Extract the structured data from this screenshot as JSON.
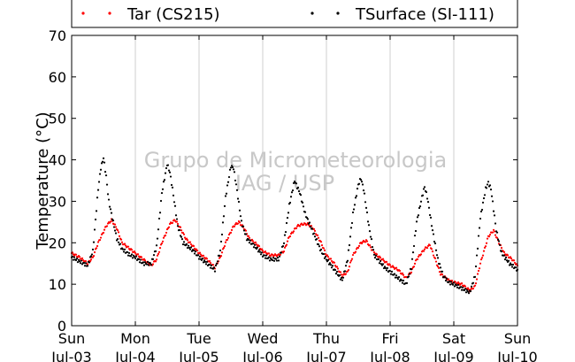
{
  "chart_data": {
    "type": "scatter",
    "title": "",
    "xlabel": "",
    "ylabel": "Temperature (°C)",
    "ylim": [
      0,
      70
    ],
    "yticks": [
      "0",
      "10",
      "20",
      "30",
      "40",
      "50",
      "60",
      "70"
    ],
    "xlim": [
      "2016-07-03 00:00",
      "2016-07-10 00:00"
    ],
    "xticks": [
      {
        "day": "Sun",
        "date": "Jul-03"
      },
      {
        "day": "Mon",
        "date": "Jul-04"
      },
      {
        "day": "Tue",
        "date": "Jul-05"
      },
      {
        "day": "Wed",
        "date": "Jul-06"
      },
      {
        "day": "Thu",
        "date": "Jul-07"
      },
      {
        "day": "Fri",
        "date": "Jul-08"
      },
      {
        "day": "Sat",
        "date": "Jul-09"
      },
      {
        "day": "Sun",
        "date": "Jul-10"
      }
    ],
    "grid": "vertical",
    "legend_position": "top",
    "watermark": [
      "Grupo de Micrometeorologia",
      "IAG / USP"
    ],
    "series": [
      {
        "name": "Tar (CS215)",
        "color": "#ff0000",
        "points": [
          [
            "Jul-03 00:00",
            17.5
          ],
          [
            "Jul-03 03:00",
            16.5
          ],
          [
            "Jul-03 06:00",
            15.0
          ],
          [
            "Jul-03 08:00",
            16.5
          ],
          [
            "Jul-03 10:00",
            20.0
          ],
          [
            "Jul-03 13:00",
            24.0
          ],
          [
            "Jul-03 15:00",
            25.5
          ],
          [
            "Jul-03 17:00",
            23.5
          ],
          [
            "Jul-03 19:00",
            20.0
          ],
          [
            "Jul-03 22:00",
            18.5
          ],
          [
            "Jul-04 00:00",
            17.5
          ],
          [
            "Jul-04 03:00",
            16.0
          ],
          [
            "Jul-04 06:00",
            14.5
          ],
          [
            "Jul-04 08:00",
            16.0
          ],
          [
            "Jul-04 10:00",
            20.0
          ],
          [
            "Jul-04 13:00",
            24.5
          ],
          [
            "Jul-04 15:00",
            25.5
          ],
          [
            "Jul-04 17:00",
            23.5
          ],
          [
            "Jul-04 19:00",
            21.0
          ],
          [
            "Jul-04 22:00",
            19.0
          ],
          [
            "Jul-05 00:00",
            17.5
          ],
          [
            "Jul-05 03:00",
            16.0
          ],
          [
            "Jul-05 06:00",
            14.0
          ],
          [
            "Jul-05 08:00",
            16.5
          ],
          [
            "Jul-05 10:00",
            20.0
          ],
          [
            "Jul-05 13:00",
            24.0
          ],
          [
            "Jul-05 15:00",
            25.0
          ],
          [
            "Jul-05 17:00",
            23.5
          ],
          [
            "Jul-05 19:00",
            21.0
          ],
          [
            "Jul-05 22:00",
            19.5
          ],
          [
            "Jul-06 00:00",
            18.0
          ],
          [
            "Jul-06 03:00",
            17.0
          ],
          [
            "Jul-06 06:00",
            17.0
          ],
          [
            "Jul-06 08:00",
            18.0
          ],
          [
            "Jul-06 10:00",
            21.5
          ],
          [
            "Jul-06 13:00",
            24.0
          ],
          [
            "Jul-06 15:00",
            24.5
          ],
          [
            "Jul-06 17:00",
            24.5
          ],
          [
            "Jul-06 19:00",
            23.5
          ],
          [
            "Jul-06 22:00",
            20.0
          ],
          [
            "Jul-07 00:00",
            17.0
          ],
          [
            "Jul-07 03:00",
            15.0
          ],
          [
            "Jul-07 06:00",
            12.0
          ],
          [
            "Jul-07 08:00",
            13.0
          ],
          [
            "Jul-07 10:00",
            17.0
          ],
          [
            "Jul-07 13:00",
            20.0
          ],
          [
            "Jul-07 15:00",
            20.5
          ],
          [
            "Jul-07 17:00",
            18.5
          ],
          [
            "Jul-07 19:00",
            17.0
          ],
          [
            "Jul-07 22:00",
            15.5
          ],
          [
            "Jul-08 00:00",
            14.5
          ],
          [
            "Jul-08 03:00",
            13.5
          ],
          [
            "Jul-08 06:00",
            11.5
          ],
          [
            "Jul-08 08:00",
            13.0
          ],
          [
            "Jul-08 10:00",
            16.0
          ],
          [
            "Jul-08 13:00",
            18.5
          ],
          [
            "Jul-08 15:00",
            19.5
          ],
          [
            "Jul-08 17:00",
            16.0
          ],
          [
            "Jul-08 19:00",
            12.5
          ],
          [
            "Jul-08 22:00",
            11.0
          ],
          [
            "Jul-09 00:00",
            10.5
          ],
          [
            "Jul-09 03:00",
            10.0
          ],
          [
            "Jul-09 06:00",
            8.5
          ],
          [
            "Jul-09 08:00",
            9.5
          ],
          [
            "Jul-09 10:00",
            15.0
          ],
          [
            "Jul-09 13:00",
            21.5
          ],
          [
            "Jul-09 15:00",
            23.0
          ],
          [
            "Jul-09 17:00",
            20.0
          ],
          [
            "Jul-09 19:00",
            17.5
          ],
          [
            "Jul-09 22:00",
            16.0
          ],
          [
            "Jul-10 00:00",
            14.5
          ]
        ]
      },
      {
        "name": "TSurface (SI-111)",
        "color": "#000000",
        "points": [
          [
            "Jul-03 00:00",
            16.5
          ],
          [
            "Jul-03 03:00",
            15.5
          ],
          [
            "Jul-03 06:00",
            14.5
          ],
          [
            "Jul-03 08:00",
            18.0
          ],
          [
            "Jul-03 10:00",
            33.0
          ],
          [
            "Jul-03 11:00",
            38.0
          ],
          [
            "Jul-03 12:00",
            40.5
          ],
          [
            "Jul-03 13:00",
            36.0
          ],
          [
            "Jul-03 14:00",
            30.0
          ],
          [
            "Jul-03 15:00",
            27.0
          ],
          [
            "Jul-03 17:00",
            21.0
          ],
          [
            "Jul-03 19:00",
            18.5
          ],
          [
            "Jul-03 22:00",
            17.0
          ],
          [
            "Jul-04 00:00",
            16.5
          ],
          [
            "Jul-04 03:00",
            15.0
          ],
          [
            "Jul-04 06:00",
            15.0
          ],
          [
            "Jul-04 08:00",
            19.0
          ],
          [
            "Jul-04 10:00",
            32.0
          ],
          [
            "Jul-04 12:00",
            39.0
          ],
          [
            "Jul-04 13:00",
            37.0
          ],
          [
            "Jul-04 14:00",
            33.0
          ],
          [
            "Jul-04 16:00",
            24.0
          ],
          [
            "Jul-04 18:00",
            20.0
          ],
          [
            "Jul-04 22:00",
            18.0
          ],
          [
            "Jul-05 00:00",
            16.5
          ],
          [
            "Jul-05 03:00",
            15.0
          ],
          [
            "Jul-05 06:00",
            13.5
          ],
          [
            "Jul-05 08:00",
            18.0
          ],
          [
            "Jul-05 10:00",
            31.0
          ],
          [
            "Jul-05 12:00",
            38.5
          ],
          [
            "Jul-05 13:00",
            38.0
          ],
          [
            "Jul-05 14:00",
            34.0
          ],
          [
            "Jul-05 16:00",
            25.0
          ],
          [
            "Jul-05 18:00",
            21.0
          ],
          [
            "Jul-05 22:00",
            18.5
          ],
          [
            "Jul-06 00:00",
            17.0
          ],
          [
            "Jul-06 03:00",
            16.0
          ],
          [
            "Jul-06 06:00",
            16.0
          ],
          [
            "Jul-06 08:00",
            20.0
          ],
          [
            "Jul-06 10:00",
            29.0
          ],
          [
            "Jul-06 12:00",
            35.0
          ],
          [
            "Jul-06 14:00",
            32.0
          ],
          [
            "Jul-06 16:00",
            27.0
          ],
          [
            "Jul-06 18:00",
            24.0
          ],
          [
            "Jul-06 20:00",
            21.0
          ],
          [
            "Jul-06 22:00",
            18.0
          ],
          [
            "Jul-07 00:00",
            16.0
          ],
          [
            "Jul-07 03:00",
            13.5
          ],
          [
            "Jul-07 06:00",
            11.0
          ],
          [
            "Jul-07 08:00",
            16.0
          ],
          [
            "Jul-07 10:00",
            27.0
          ],
          [
            "Jul-07 12:00",
            34.0
          ],
          [
            "Jul-07 13:00",
            35.5
          ],
          [
            "Jul-07 14:00",
            33.0
          ],
          [
            "Jul-07 16:00",
            24.0
          ],
          [
            "Jul-07 18:00",
            17.0
          ],
          [
            "Jul-07 22:00",
            14.0
          ],
          [
            "Jul-08 00:00",
            13.0
          ],
          [
            "Jul-08 03:00",
            11.5
          ],
          [
            "Jul-08 06:00",
            10.0
          ],
          [
            "Jul-08 08:00",
            14.0
          ],
          [
            "Jul-08 10:00",
            25.0
          ],
          [
            "Jul-08 12:00",
            31.0
          ],
          [
            "Jul-08 13:00",
            33.5
          ],
          [
            "Jul-08 14:00",
            31.0
          ],
          [
            "Jul-08 16:00",
            23.0
          ],
          [
            "Jul-08 18:00",
            16.0
          ],
          [
            "Jul-08 20:00",
            12.0
          ],
          [
            "Jul-08 22:00",
            10.5
          ],
          [
            "Jul-09 00:00",
            10.0
          ],
          [
            "Jul-09 03:00",
            9.0
          ],
          [
            "Jul-09 06:00",
            8.0
          ],
          [
            "Jul-09 08:00",
            12.0
          ],
          [
            "Jul-09 10:00",
            26.0
          ],
          [
            "Jul-09 12:00",
            33.0
          ],
          [
            "Jul-09 13:00",
            34.5
          ],
          [
            "Jul-09 14:00",
            33.0
          ],
          [
            "Jul-09 16:00",
            23.0
          ],
          [
            "Jul-09 18:00",
            17.5
          ],
          [
            "Jul-09 21:00",
            15.0
          ],
          [
            "Jul-10 00:00",
            13.5
          ]
        ]
      }
    ]
  }
}
